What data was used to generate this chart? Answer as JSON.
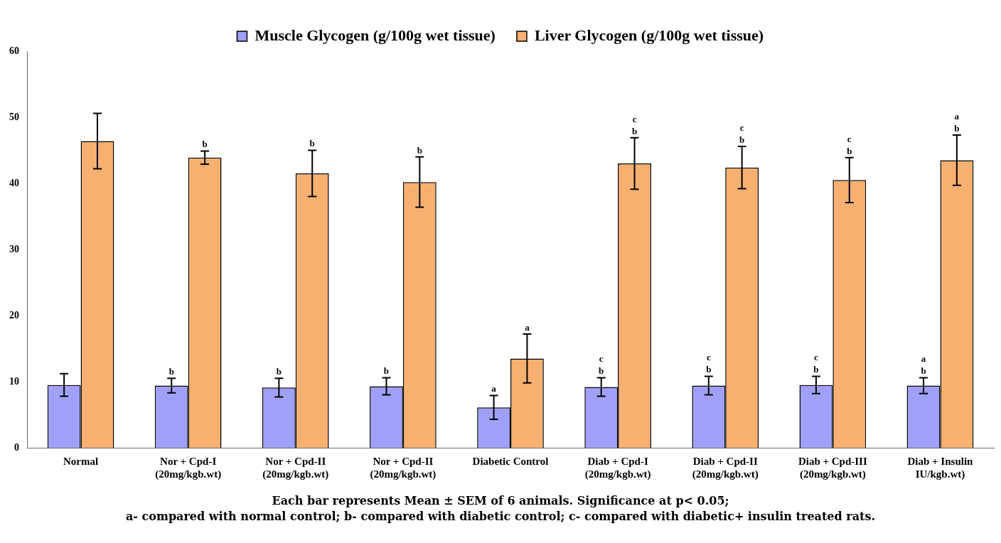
{
  "chart_data": {
    "type": "bar",
    "categories": [
      "Normal",
      "Nor + Cpd-I\n(20mg/kgb.wt)",
      "Nor + Cpd-II\n(20mg/kgb.wt)",
      "Nor + Cpd-II\n(20mg/kgb.wt)",
      "Diabetic Control",
      "Diab + Cpd-I\n(20mg/kgb.wt)",
      "Diab + Cpd-II\n(20mg/kgb.wt)",
      "Diab + Cpd-III\n(20mg/kgb.wt)",
      "Diab + Insulin\nIU/kgb.wt)"
    ],
    "series": [
      {
        "name": "Muscle Glycogen (g/100g wet tissue)",
        "color": "#a0a0f8",
        "values": [
          9.5,
          9.4,
          9.1,
          9.3,
          6.1,
          9.2,
          9.4,
          9.5,
          9.4
        ],
        "errors": [
          1.7,
          1.1,
          1.4,
          1.3,
          1.8,
          1.4,
          1.4,
          1.3,
          1.2
        ],
        "value_labels": [
          null,
          "b",
          "b",
          "b",
          "a",
          "c\nb",
          "c\nb",
          "c\nb",
          "a\nb"
        ]
      },
      {
        "name": "Liver Glycogen (g/100g wet tissue)",
        "color": "#f8b070",
        "values": [
          46.4,
          43.9,
          41.5,
          40.2,
          13.5,
          43.0,
          42.4,
          40.5,
          43.5
        ],
        "errors": [
          4.2,
          1.0,
          3.5,
          3.8,
          3.7,
          3.9,
          3.2,
          3.4,
          3.8
        ],
        "value_labels": [
          null,
          "b",
          "b",
          "b",
          "a",
          "c\nb",
          "c\nb",
          "c\nb",
          "a\nb"
        ]
      }
    ],
    "ylim": [
      0,
      60
    ],
    "yticks": [
      0,
      10,
      20,
      30,
      40,
      50,
      60
    ],
    "grid": false,
    "legend": "top",
    "annotations": [
      "Each bar represents Mean ± SEM of 6 animals. Significance at p< 0.05;",
      "a- compared with normal control; b- compared with diabetic control; c- compared with diabetic+ insulin treated rats."
    ]
  }
}
